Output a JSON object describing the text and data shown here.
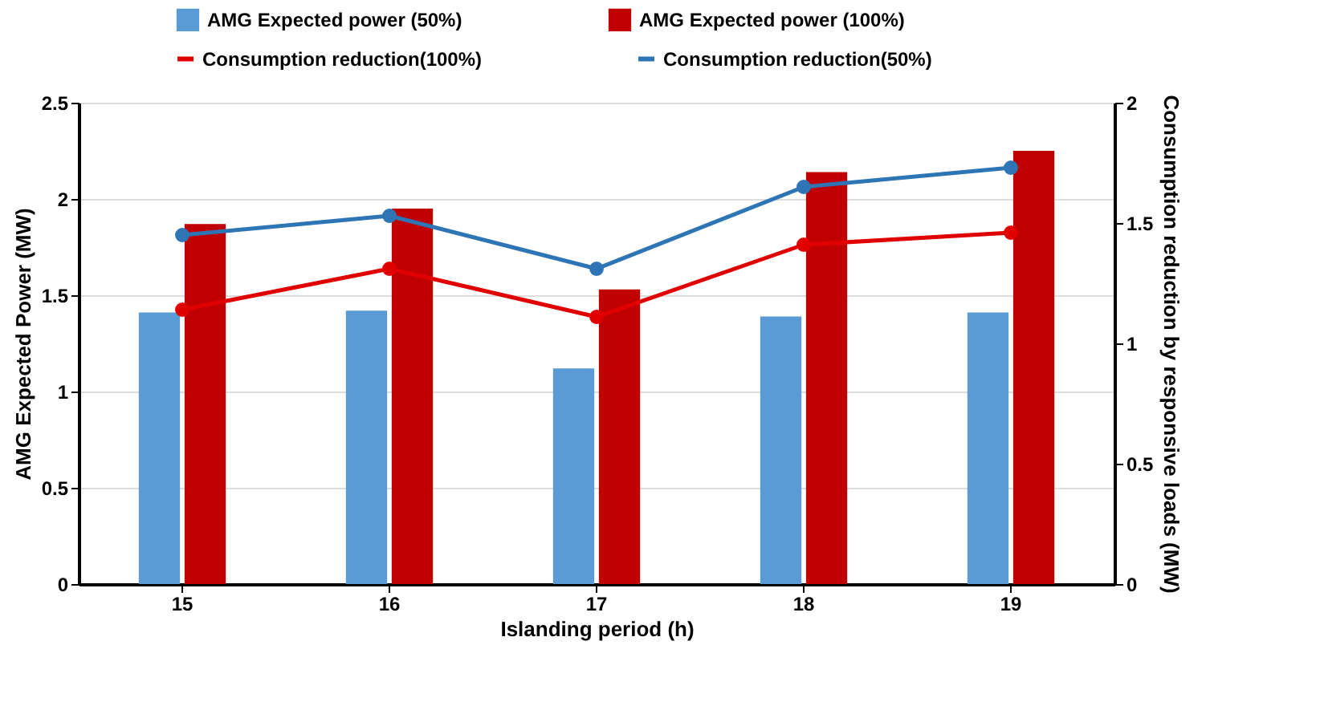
{
  "chart_data": {
    "type": "bar",
    "xlabel": "Islanding period (h)",
    "ylabel": "AMG Expected Power (MW)",
    "y2label": "Consumption reduction by responsive loads (MW)",
    "categories": [
      "15",
      "16",
      "17",
      "18",
      "19"
    ],
    "series": [
      {
        "name": "AMG Expected power (50%)",
        "color": "#5b9bd5",
        "values": [
          1.41,
          1.42,
          1.12,
          1.39,
          1.41
        ]
      },
      {
        "name": "AMG Expected power (100%)",
        "color": "#c00000",
        "values": [
          1.87,
          1.95,
          1.53,
          2.14,
          2.25
        ]
      },
      {
        "name": "Consumption reduction(100%)",
        "type": "line",
        "axis": "y2",
        "color": "#e00000",
        "values": [
          1.14,
          1.31,
          1.11,
          1.41,
          1.46
        ]
      },
      {
        "name": "Consumption reduction(50%)",
        "type": "line",
        "axis": "y2",
        "color": "#2e75b6",
        "values": [
          1.45,
          1.53,
          1.31,
          1.65,
          1.73
        ]
      }
    ],
    "ylim": [
      0,
      2.5
    ],
    "yticks": [
      0,
      0.5,
      1,
      1.5,
      2,
      2.5
    ],
    "y2lim": [
      0,
      2
    ],
    "y2ticks": [
      0,
      0.5,
      1,
      1.5,
      2
    ],
    "grid": "y",
    "legend": "top",
    "marker": "circle"
  }
}
